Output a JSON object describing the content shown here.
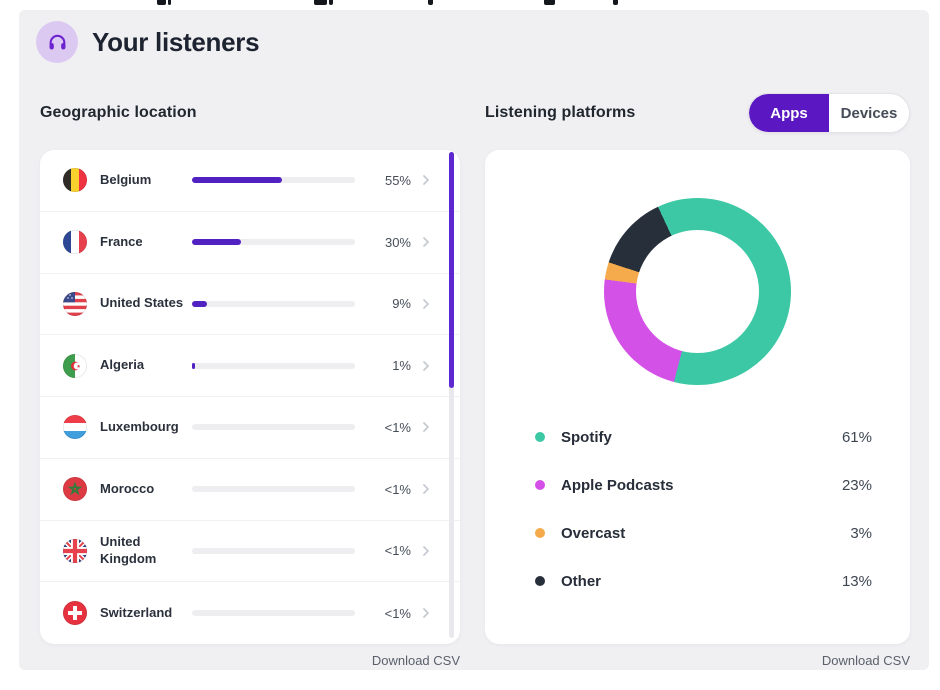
{
  "header": {
    "title": "Your listeners"
  },
  "geo": {
    "section_title": "Geographic location",
    "download_label": "Download CSV",
    "countries": [
      {
        "code": "be",
        "name": "Belgium",
        "percent_label": "55%",
        "bar_percent": 55
      },
      {
        "code": "fr",
        "name": "France",
        "percent_label": "30%",
        "bar_percent": 30
      },
      {
        "code": "us",
        "name": "United States",
        "percent_label": "9%",
        "bar_percent": 9
      },
      {
        "code": "dz",
        "name": "Algeria",
        "percent_label": "1%",
        "bar_percent": 1
      },
      {
        "code": "lu",
        "name": "Luxembourg",
        "percent_label": "<1%",
        "bar_percent": 0
      },
      {
        "code": "ma",
        "name": "Morocco",
        "percent_label": "<1%",
        "bar_percent": 0
      },
      {
        "code": "gb",
        "name": "United Kingdom",
        "percent_label": "<1%",
        "bar_percent": 0
      },
      {
        "code": "ch",
        "name": "Switzerland",
        "percent_label": "<1%",
        "bar_percent": 0
      }
    ]
  },
  "platforms": {
    "section_title": "Listening platforms",
    "toggle": {
      "options": [
        "Apps",
        "Devices"
      ],
      "selected": "Apps"
    },
    "download_label": "Download CSV"
  },
  "chart_data": {
    "type": "pie",
    "donut": true,
    "title": "Listening platforms",
    "start_angle_deg": 335,
    "legend_position": "bottom",
    "values_unit": "%",
    "series": [
      {
        "name": "Spotify",
        "value": 61,
        "label": "61%",
        "color": "#3cc8a5"
      },
      {
        "name": "Apple Podcasts",
        "value": 23,
        "label": "23%",
        "color": "#d351e6"
      },
      {
        "name": "Overcast",
        "value": 3,
        "label": "3%",
        "color": "#f5ab4c"
      },
      {
        "name": "Other",
        "value": 13,
        "label": "13%",
        "color": "#272f3a"
      }
    ]
  },
  "colors": {
    "accent_purple": "#5b18c2",
    "bar_fill": "#5221c1",
    "scrollbar": "#5d28cf",
    "icon_purple": "#6d23cf",
    "icon_badge_bg": "#dcc9f2",
    "panel_bg": "#f0f0f3"
  }
}
